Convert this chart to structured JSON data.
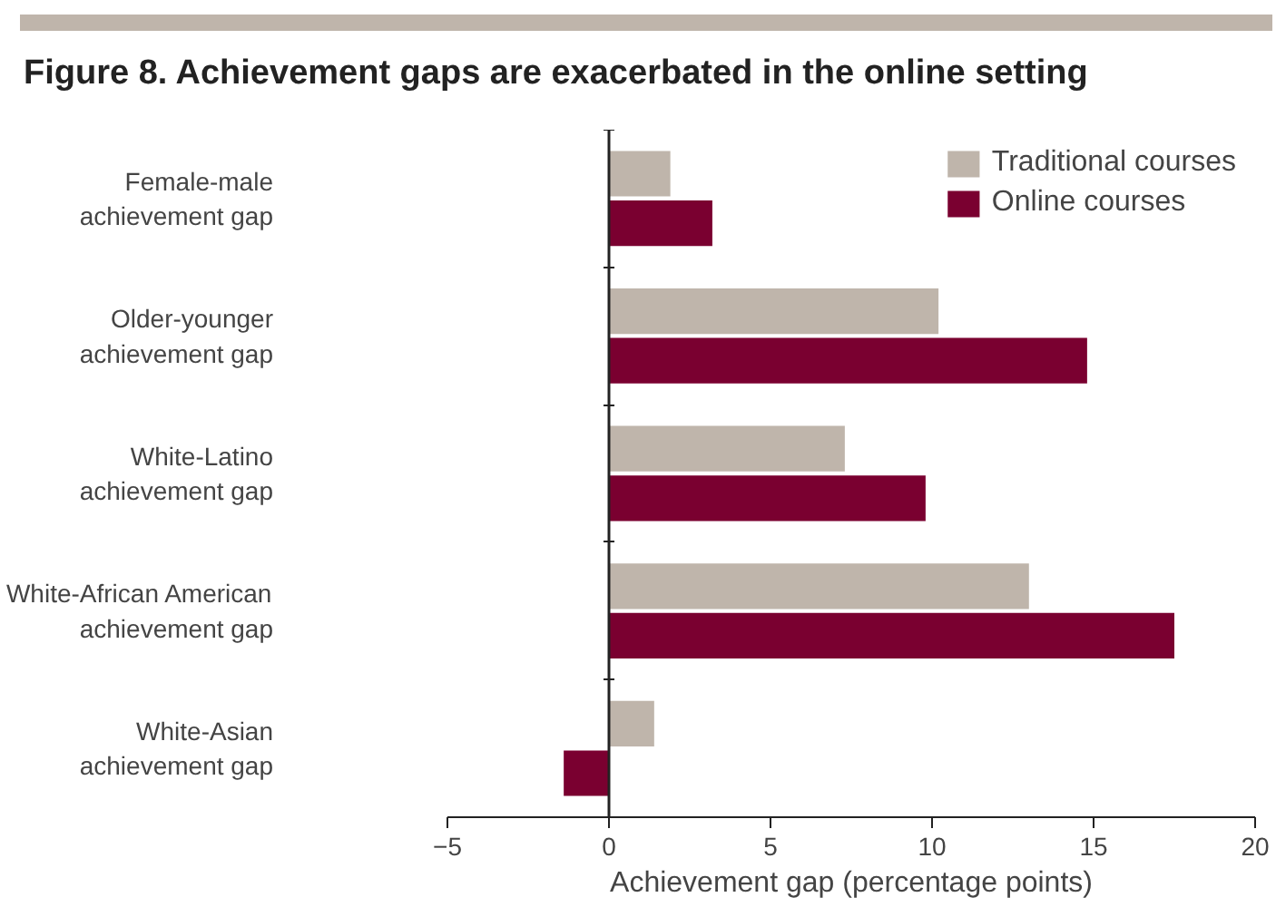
{
  "chart_data": {
    "type": "bar",
    "orientation": "horizontal",
    "title": "Figure 8. Achievement gaps are exacerbated in the online setting",
    "xlabel": "Achievement gap (percentage points)",
    "categories": [
      "Female-male\nachievement gap",
      "Older-younger\nachievement gap",
      "White-Latino\nachievement gap",
      "White-African American\nachievement gap",
      "White-Asian\nachievement gap"
    ],
    "series": [
      {
        "name": "Traditional courses",
        "color": "#bfb5ab",
        "values": [
          1.9,
          10.2,
          7.3,
          13.0,
          1.4
        ]
      },
      {
        "name": "Online courses",
        "color": "#7a0030",
        "values": [
          3.2,
          14.8,
          9.8,
          17.5,
          -1.4
        ]
      }
    ],
    "xlim": [
      -5,
      20
    ],
    "xticks": [
      {
        "value": -5,
        "label": "−5"
      },
      0,
      5,
      10,
      15,
      20
    ],
    "legend": "top right"
  }
}
